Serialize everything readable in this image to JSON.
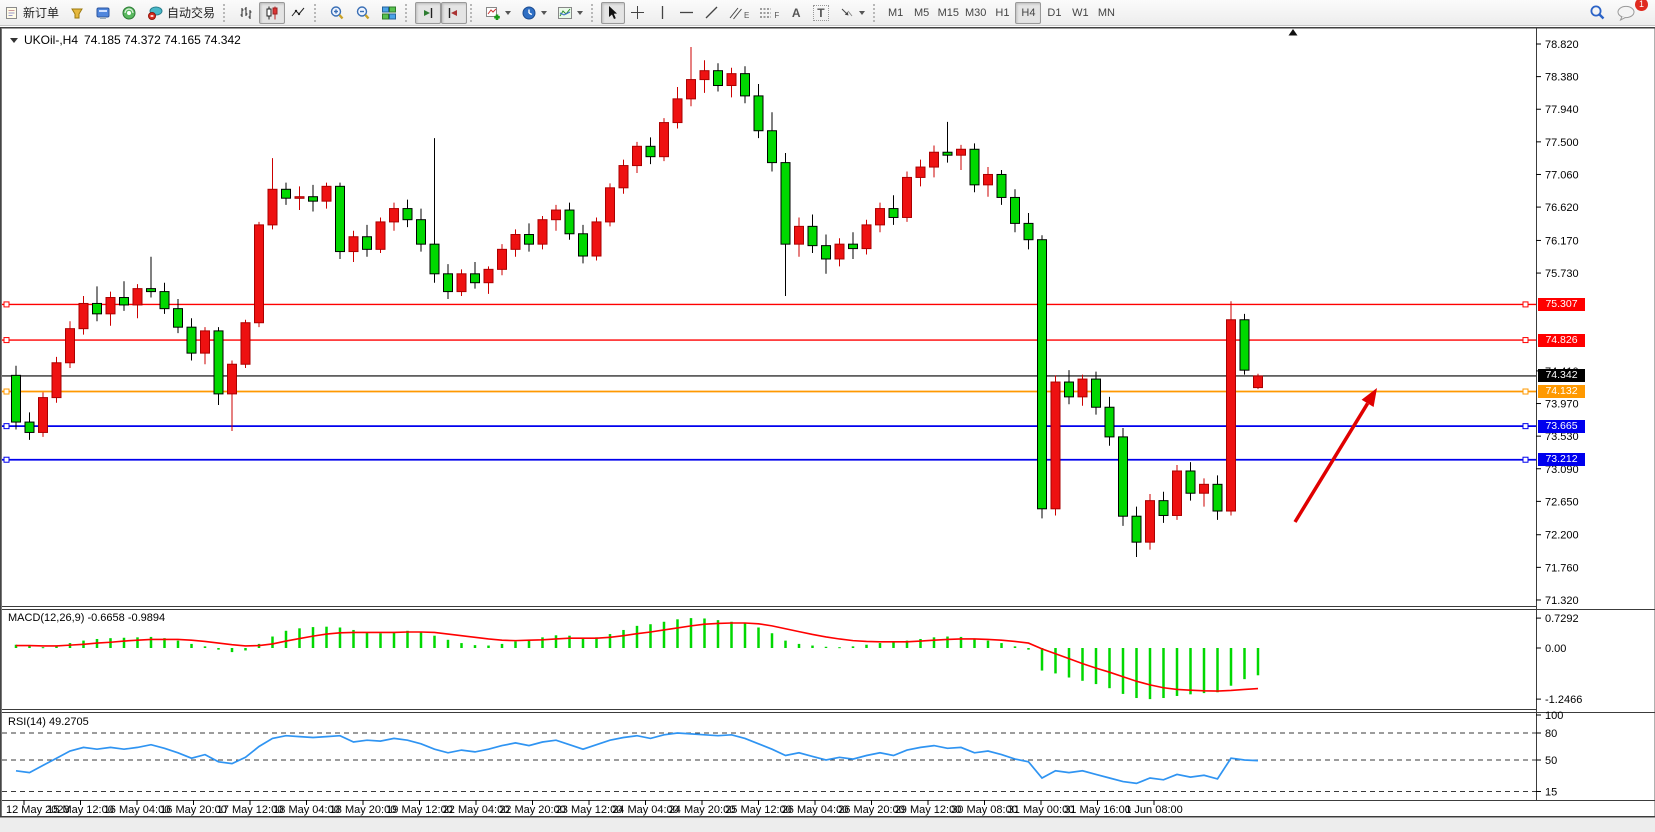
{
  "toolbar": {
    "new_order_label": "新订单",
    "auto_trading_label": "自动交易",
    "timeframes": [
      "M1",
      "M5",
      "M15",
      "M30",
      "H1",
      "H4",
      "D1",
      "W1",
      "MN"
    ],
    "active_timeframe": "H4",
    "notification_count": "1",
    "letters": {
      "channel": "E",
      "fibo": "F",
      "text": "A",
      "label": "T"
    }
  },
  "chart": {
    "title_symbol": "UKOil-,H4",
    "title_ohlc": "74.185 74.372 74.165 74.342"
  },
  "price_axis": {
    "ticks": [
      "78.820",
      "78.380",
      "77.940",
      "77.500",
      "77.060",
      "76.620",
      "76.170",
      "75.730",
      "74.410",
      "73.970",
      "73.530",
      "73.090",
      "72.650",
      "72.200",
      "71.760",
      "71.320"
    ]
  },
  "hlines": [
    {
      "price": 75.307,
      "label": "75.307",
      "color": "#ff0000",
      "width": 1.4,
      "handles": true
    },
    {
      "price": 74.826,
      "label": "74.826",
      "color": "#ff0000",
      "width": 1.4,
      "handles": true
    },
    {
      "price": 74.342,
      "label": "74.342",
      "color": "#000000",
      "width": 1.1,
      "handles": false
    },
    {
      "price": 74.132,
      "label": "74.132",
      "color": "#ff9900",
      "width": 1.8,
      "handles": true
    },
    {
      "price": 73.665,
      "label": "73.665",
      "color": "#0000ee",
      "width": 1.8,
      "handles": true
    },
    {
      "price": 73.212,
      "label": "73.212",
      "color": "#0000ee",
      "width": 1.8,
      "handles": true
    }
  ],
  "indicators": {
    "macd": {
      "label": "MACD(12,26,9) -0.6658 -0.9894",
      "ticks": [
        {
          "v": 0.7292,
          "t": "0.7292"
        },
        {
          "v": 0,
          "t": "0.00"
        },
        {
          "v": -1.2466,
          "t": "-1.2466"
        }
      ]
    },
    "rsi": {
      "label": "RSI(14) 49.2705",
      "ticks": [
        {
          "v": 100,
          "t": "100"
        },
        {
          "v": 80,
          "t": "80"
        },
        {
          "v": 50,
          "t": "50"
        },
        {
          "v": 15,
          "t": "15"
        }
      ],
      "levels": [
        80,
        50,
        15
      ]
    }
  },
  "time_axis": {
    "labels": [
      "12 May 2023",
      "15 May 12:00",
      "16 May 04:00",
      "16 May 20:00",
      "17 May 12:00",
      "18 May 04:00",
      "18 May 20:00",
      "19 May 12:00",
      "22 May 04:00",
      "22 May 20:00",
      "23 May 12:00",
      "24 May 04:00",
      "24 May 20:00",
      "25 May 12:00",
      "26 May 04:00",
      "26 May 20:00",
      "29 May 12:00",
      "30 May 08:00",
      "31 May 00:00",
      "31 May 16:00",
      "1 Jun 08:00"
    ]
  },
  "chart_data": {
    "type": "candlestick",
    "symbol": "UKOil",
    "timeframe": "H4",
    "up_color": "#ee1111",
    "down_color": "#00d800",
    "price_range": [
      71.32,
      78.82
    ],
    "candles": [
      [
        74.35,
        74.48,
        73.62,
        73.72
      ],
      [
        73.72,
        73.85,
        73.48,
        73.58
      ],
      [
        73.58,
        74.12,
        73.52,
        74.05
      ],
      [
        74.05,
        74.6,
        73.98,
        74.52
      ],
      [
        74.52,
        75.08,
        74.45,
        74.98
      ],
      [
        74.98,
        75.42,
        74.9,
        75.32
      ],
      [
        75.32,
        75.55,
        75.08,
        75.18
      ],
      [
        75.18,
        75.48,
        75.02,
        75.4
      ],
      [
        75.4,
        75.62,
        75.22,
        75.3
      ],
      [
        75.3,
        75.58,
        75.12,
        75.52
      ],
      [
        75.52,
        75.95,
        75.4,
        75.48
      ],
      [
        75.48,
        75.6,
        75.18,
        75.25
      ],
      [
        75.25,
        75.38,
        74.92,
        75.0
      ],
      [
        75.0,
        75.12,
        74.55,
        74.65
      ],
      [
        74.65,
        75.0,
        74.5,
        74.95
      ],
      [
        74.95,
        75.0,
        73.95,
        74.1
      ],
      [
        74.1,
        74.55,
        73.6,
        74.5
      ],
      [
        74.5,
        75.1,
        74.45,
        75.06
      ],
      [
        75.06,
        76.42,
        75.0,
        76.38
      ],
      [
        76.38,
        77.28,
        76.32,
        76.86
      ],
      [
        76.86,
        76.95,
        76.65,
        76.74
      ],
      [
        76.74,
        76.9,
        76.58,
        76.76
      ],
      [
        76.76,
        76.92,
        76.56,
        76.7
      ],
      [
        76.7,
        76.95,
        76.6,
        76.9
      ],
      [
        76.9,
        76.95,
        75.92,
        76.02
      ],
      [
        76.02,
        76.3,
        75.88,
        76.22
      ],
      [
        76.22,
        76.38,
        75.95,
        76.05
      ],
      [
        76.05,
        76.48,
        76.0,
        76.42
      ],
      [
        76.42,
        76.68,
        76.3,
        76.6
      ],
      [
        76.6,
        76.72,
        76.35,
        76.45
      ],
      [
        76.45,
        76.6,
        76.02,
        76.12
      ],
      [
        76.12,
        77.55,
        75.6,
        75.72
      ],
      [
        75.72,
        75.85,
        75.38,
        75.48
      ],
      [
        75.48,
        75.78,
        75.42,
        75.72
      ],
      [
        75.72,
        75.88,
        75.52,
        75.6
      ],
      [
        75.6,
        75.82,
        75.45,
        75.78
      ],
      [
        75.78,
        76.12,
        75.7,
        76.05
      ],
      [
        76.05,
        76.32,
        75.95,
        76.25
      ],
      [
        76.25,
        76.4,
        76.02,
        76.12
      ],
      [
        76.12,
        76.5,
        76.05,
        76.45
      ],
      [
        76.45,
        76.65,
        76.3,
        76.58
      ],
      [
        76.58,
        76.68,
        76.18,
        76.26
      ],
      [
        76.26,
        76.38,
        75.86,
        75.96
      ],
      [
        75.96,
        76.48,
        75.9,
        76.42
      ],
      [
        76.42,
        76.94,
        76.36,
        76.88
      ],
      [
        76.88,
        77.26,
        76.8,
        77.18
      ],
      [
        77.18,
        77.5,
        77.08,
        77.44
      ],
      [
        77.44,
        77.56,
        77.2,
        77.3
      ],
      [
        77.3,
        77.82,
        77.24,
        77.76
      ],
      [
        77.76,
        78.24,
        77.68,
        78.08
      ],
      [
        78.08,
        78.78,
        77.98,
        78.34
      ],
      [
        78.34,
        78.6,
        78.16,
        78.46
      ],
      [
        78.46,
        78.56,
        78.18,
        78.26
      ],
      [
        78.26,
        78.5,
        78.1,
        78.42
      ],
      [
        78.42,
        78.52,
        78.02,
        78.12
      ],
      [
        78.12,
        78.28,
        77.55,
        77.65
      ],
      [
        77.65,
        77.9,
        77.1,
        77.22
      ],
      [
        77.22,
        77.35,
        75.42,
        76.12
      ],
      [
        76.12,
        76.48,
        75.95,
        76.36
      ],
      [
        76.36,
        76.52,
        76.0,
        76.1
      ],
      [
        76.1,
        76.25,
        75.72,
        75.92
      ],
      [
        75.92,
        76.2,
        75.82,
        76.12
      ],
      [
        76.12,
        76.28,
        75.92,
        76.06
      ],
      [
        76.06,
        76.45,
        75.98,
        76.38
      ],
      [
        76.38,
        76.68,
        76.28,
        76.6
      ],
      [
        76.6,
        76.78,
        76.38,
        76.48
      ],
      [
        76.48,
        77.1,
        76.42,
        77.02
      ],
      [
        77.02,
        77.26,
        76.9,
        77.16
      ],
      [
        77.16,
        77.45,
        77.02,
        77.36
      ],
      [
        77.36,
        77.77,
        77.22,
        77.32
      ],
      [
        77.32,
        77.46,
        77.12,
        77.4
      ],
      [
        77.4,
        77.48,
        76.82,
        76.92
      ],
      [
        76.92,
        77.16,
        76.76,
        77.06
      ],
      [
        77.06,
        77.12,
        76.65,
        76.75
      ],
      [
        76.75,
        76.86,
        76.28,
        76.4
      ],
      [
        76.4,
        76.54,
        76.05,
        76.18
      ],
      [
        76.18,
        76.24,
        72.42,
        72.55
      ],
      [
        72.55,
        74.35,
        72.46,
        74.26
      ],
      [
        74.26,
        74.42,
        73.96,
        74.06
      ],
      [
        74.06,
        74.36,
        73.94,
        74.3
      ],
      [
        74.3,
        74.4,
        73.82,
        73.92
      ],
      [
        73.92,
        74.06,
        73.4,
        73.52
      ],
      [
        73.52,
        73.64,
        72.32,
        72.45
      ],
      [
        72.45,
        72.58,
        71.9,
        72.1
      ],
      [
        72.1,
        72.75,
        72.0,
        72.66
      ],
      [
        72.66,
        72.78,
        72.36,
        72.46
      ],
      [
        72.46,
        73.14,
        72.4,
        73.06
      ],
      [
        73.06,
        73.18,
        72.66,
        72.76
      ],
      [
        72.76,
        72.96,
        72.58,
        72.88
      ],
      [
        72.88,
        73.0,
        72.4,
        72.52
      ],
      [
        72.52,
        75.35,
        72.46,
        75.1
      ],
      [
        75.1,
        75.18,
        74.36,
        74.42
      ],
      [
        74.185,
        74.372,
        74.165,
        74.342
      ]
    ],
    "macd": {
      "histogram": [
        0.08,
        0.05,
        0.02,
        0.06,
        0.12,
        0.18,
        0.22,
        0.24,
        0.25,
        0.26,
        0.27,
        0.24,
        0.18,
        0.1,
        0.04,
        -0.04,
        -0.1,
        -0.06,
        0.1,
        0.28,
        0.42,
        0.48,
        0.51,
        0.52,
        0.5,
        0.44,
        0.38,
        0.36,
        0.38,
        0.42,
        0.4,
        0.3,
        0.2,
        0.12,
        0.07,
        0.06,
        0.1,
        0.16,
        0.2,
        0.26,
        0.31,
        0.3,
        0.24,
        0.26,
        0.34,
        0.44,
        0.54,
        0.58,
        0.64,
        0.7,
        0.729,
        0.72,
        0.68,
        0.64,
        0.6,
        0.5,
        0.36,
        0.18,
        0.1,
        0.06,
        0.03,
        0.02,
        0.04,
        0.08,
        0.12,
        0.14,
        0.18,
        0.22,
        0.26,
        0.28,
        0.27,
        0.22,
        0.18,
        0.12,
        0.04,
        -0.04,
        -0.55,
        -0.62,
        -0.72,
        -0.8,
        -0.88,
        -0.98,
        -1.12,
        -1.22,
        -1.2466,
        -1.22,
        -1.17,
        -1.13,
        -1.1,
        -1.08,
        -0.92,
        -0.76,
        -0.6658
      ],
      "signal": [
        0.06,
        0.06,
        0.05,
        0.05,
        0.07,
        0.09,
        0.12,
        0.14,
        0.17,
        0.19,
        0.21,
        0.21,
        0.21,
        0.19,
        0.16,
        0.12,
        0.08,
        0.05,
        0.06,
        0.1,
        0.17,
        0.23,
        0.29,
        0.34,
        0.37,
        0.38,
        0.38,
        0.38,
        0.38,
        0.39,
        0.39,
        0.38,
        0.34,
        0.3,
        0.26,
        0.22,
        0.19,
        0.18,
        0.19,
        0.2,
        0.22,
        0.24,
        0.24,
        0.24,
        0.26,
        0.3,
        0.35,
        0.39,
        0.44,
        0.49,
        0.54,
        0.58,
        0.6,
        0.61,
        0.61,
        0.59,
        0.54,
        0.47,
        0.4,
        0.33,
        0.27,
        0.22,
        0.18,
        0.16,
        0.15,
        0.15,
        0.15,
        0.17,
        0.19,
        0.21,
        0.22,
        0.22,
        0.21,
        0.19,
        0.16,
        0.12,
        -0.02,
        -0.14,
        -0.26,
        -0.38,
        -0.49,
        -0.59,
        -0.7,
        -0.81,
        -0.9,
        -0.97,
        -1.01,
        -1.03,
        -1.045,
        -1.05,
        -1.035,
        -1.01,
        -0.9894
      ]
    },
    "rsi": [
      38,
      36,
      44,
      52,
      60,
      64,
      62,
      64,
      62,
      64,
      67,
      63,
      58,
      52,
      56,
      48,
      46,
      53,
      65,
      74,
      77,
      76,
      75,
      76,
      77,
      70,
      72,
      71,
      74,
      72,
      68,
      62,
      58,
      61,
      59,
      62,
      66,
      69,
      66,
      70,
      72,
      67,
      62,
      67,
      72,
      75,
      77,
      74,
      78,
      80,
      79,
      78,
      77,
      78,
      74,
      68,
      62,
      55,
      58,
      54,
      50,
      53,
      51,
      55,
      58,
      55,
      61,
      64,
      66,
      63,
      64,
      58,
      60,
      56,
      51,
      48,
      30,
      38,
      36,
      38,
      34,
      30,
      26,
      24,
      30,
      28,
      34,
      31,
      33,
      29,
      52,
      50,
      49.27
    ]
  },
  "arrow": {
    "color": "#e00000"
  }
}
